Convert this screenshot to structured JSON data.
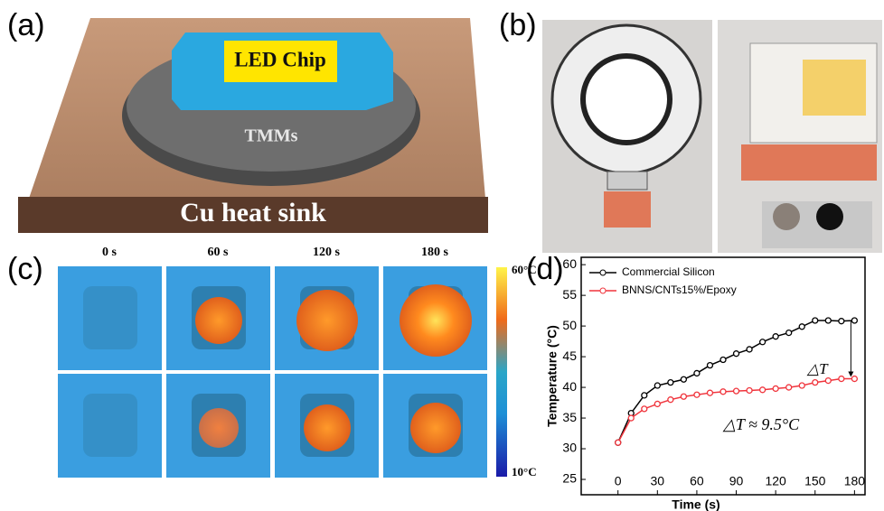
{
  "panels": {
    "a": {
      "label": "(a)",
      "chip": "LED Chip",
      "tmm": "TMMs",
      "sink": "Cu heat sink"
    },
    "b": {
      "label": "(b)"
    },
    "c": {
      "label": "(c)",
      "times": [
        "0 s",
        "60 s",
        "120 s",
        "180 s"
      ],
      "scale_max": "60°C",
      "scale_min": "10°C"
    },
    "d": {
      "label": "(d)"
    }
  },
  "chart_data": {
    "type": "line",
    "xlabel": "Time (s)",
    "ylabel": "Temperature (°C)",
    "x": [
      0,
      10,
      20,
      30,
      40,
      50,
      60,
      70,
      80,
      90,
      100,
      110,
      120,
      130,
      140,
      150,
      160,
      170,
      180
    ],
    "series": [
      {
        "name": "Commercial Silicon",
        "color": "#000000",
        "values": [
          31,
          35.8,
          38.7,
          40.3,
          40.8,
          41.3,
          42.3,
          43.6,
          44.5,
          45.5,
          46.2,
          47.4,
          48.3,
          48.9,
          49.9,
          50.9,
          50.9,
          50.8,
          50.9
        ]
      },
      {
        "name": "BNNS/CNTs15%/Epoxy",
        "color": "#f0343c",
        "values": [
          31,
          35,
          36.5,
          37.3,
          38,
          38.5,
          38.8,
          39.1,
          39.3,
          39.4,
          39.5,
          39.6,
          39.8,
          40,
          40.3,
          40.8,
          41.1,
          41.4,
          41.4
        ]
      }
    ],
    "xlim": [
      -28,
      188
    ],
    "ylim": [
      22.5,
      61.2
    ],
    "xticks": [
      0,
      30,
      60,
      90,
      120,
      150,
      180
    ],
    "yticks": [
      25,
      30,
      35,
      40,
      45,
      50,
      55,
      60
    ],
    "annotations": [
      "△T",
      "△T ≈ 9.5°C"
    ]
  }
}
